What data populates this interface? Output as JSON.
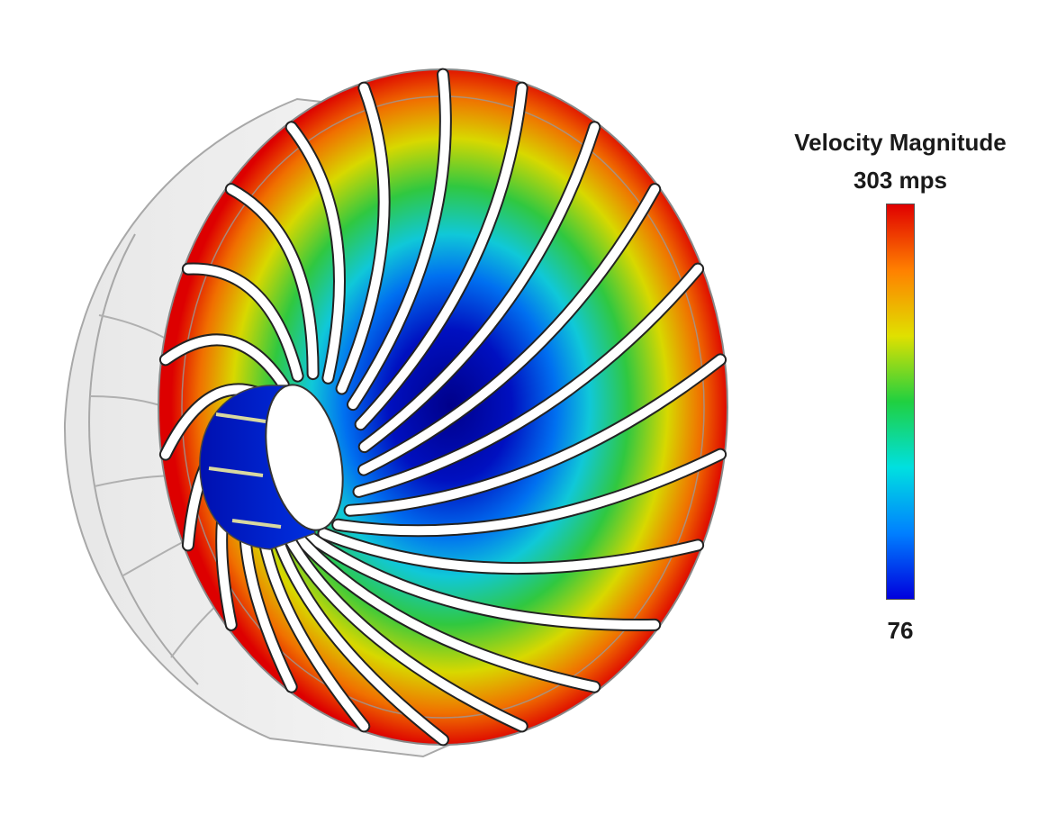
{
  "legend": {
    "title": "Velocity Magnitude",
    "max_label": "303 mps",
    "min_label": "76",
    "max_value": 303,
    "min_value": 76,
    "unit": "mps",
    "colormap": [
      "#0000dd",
      "#0080ff",
      "#00e0e0",
      "#20d040",
      "#e0e000",
      "#ff8000",
      "#e00000"
    ]
  },
  "visual": {
    "subject-icon": "impeller-icon",
    "blade_count": 22,
    "shroud_color": "#d0d0d0",
    "blade_color": "#ffffff"
  }
}
